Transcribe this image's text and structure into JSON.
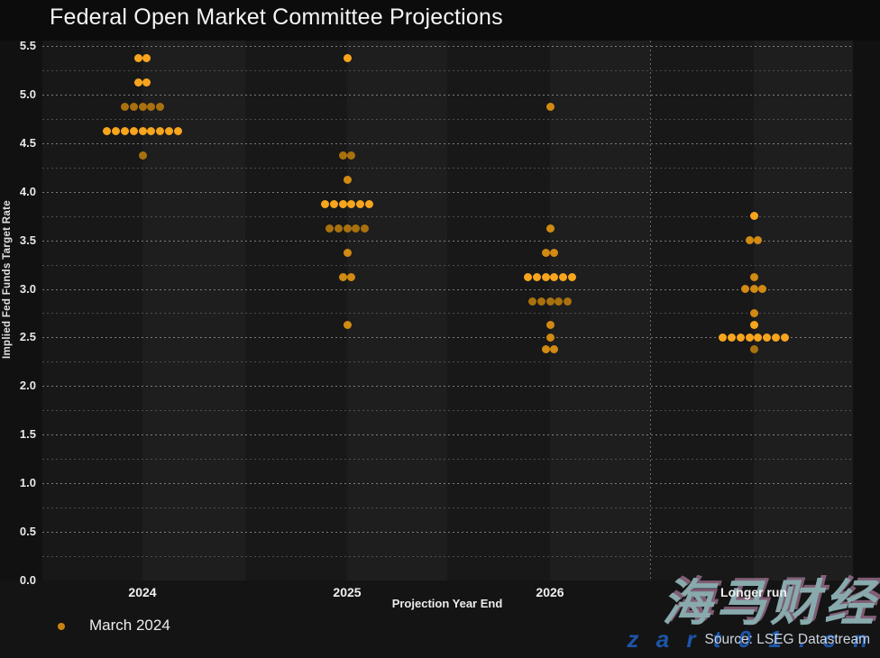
{
  "title": "Federal Open Market Committee Projections",
  "legend": {
    "label": "March 2024",
    "marker_color": "#c8820f"
  },
  "source": "Source: LSEG Datastream",
  "watermark": {
    "main": "海马财经",
    "sub": "z a r t 0 1 . c n"
  },
  "colors": {
    "dot_bright": "#f8a51e",
    "dot_mid": "#d18a12",
    "dot_dim": "#a9710e",
    "plot_bg": "#1c1c1c",
    "page_bg": "#141414",
    "text": "#ededed"
  },
  "chart_data": {
    "type": "scatter",
    "title": "Federal Open Market Committee Projections",
    "xlabel": "Projection Year End",
    "ylabel": "Implied Fed Funds Target Rate",
    "ylim": [
      0,
      5.5
    ],
    "ytick_step": 0.5,
    "grid_step": 0.25,
    "grid": true,
    "legend_position": "bottom-left",
    "categories": [
      "2024",
      "2025",
      "2026",
      "Longer run"
    ],
    "series": [
      {
        "name": "March 2024",
        "points": [
          {
            "category": "2024",
            "rate": 5.375,
            "count": 2,
            "shade": "bright"
          },
          {
            "category": "2024",
            "rate": 5.125,
            "count": 2,
            "shade": "bright"
          },
          {
            "category": "2024",
            "rate": 4.875,
            "count": 5,
            "shade": "dim"
          },
          {
            "category": "2024",
            "rate": 4.625,
            "count": 9,
            "shade": "bright"
          },
          {
            "category": "2024",
            "rate": 4.375,
            "count": 1,
            "shade": "dim"
          },
          {
            "category": "2025",
            "rate": 5.375,
            "count": 1,
            "shade": "bright"
          },
          {
            "category": "2025",
            "rate": 4.375,
            "count": 2,
            "shade": "dim"
          },
          {
            "category": "2025",
            "rate": 4.125,
            "count": 1,
            "shade": "mid"
          },
          {
            "category": "2025",
            "rate": 3.875,
            "count": 6,
            "shade": "bright"
          },
          {
            "category": "2025",
            "rate": 3.625,
            "count": 5,
            "shade": "dim"
          },
          {
            "category": "2025",
            "rate": 3.375,
            "count": 1,
            "shade": "mid"
          },
          {
            "category": "2025",
            "rate": 3.125,
            "count": 2,
            "shade": "mid"
          },
          {
            "category": "2025",
            "rate": 2.625,
            "count": 1,
            "shade": "mid"
          },
          {
            "category": "2026",
            "rate": 4.875,
            "count": 1,
            "shade": "mid"
          },
          {
            "category": "2026",
            "rate": 3.625,
            "count": 1,
            "shade": "mid"
          },
          {
            "category": "2026",
            "rate": 3.375,
            "count": 2,
            "shade": "mid"
          },
          {
            "category": "2026",
            "rate": 3.125,
            "count": 6,
            "shade": "bright"
          },
          {
            "category": "2026",
            "rate": 2.875,
            "count": 5,
            "shade": "dim"
          },
          {
            "category": "2026",
            "rate": 2.625,
            "count": 1,
            "shade": "mid"
          },
          {
            "category": "2026",
            "rate": 2.5,
            "count": 1,
            "shade": "mid"
          },
          {
            "category": "2026",
            "rate": 2.375,
            "count": 2,
            "shade": "mid"
          },
          {
            "category": "Longer run",
            "rate": 3.75,
            "count": 1,
            "shade": "bright"
          },
          {
            "category": "Longer run",
            "rate": 3.5,
            "count": 2,
            "shade": "mid"
          },
          {
            "category": "Longer run",
            "rate": 3.125,
            "count": 1,
            "shade": "mid"
          },
          {
            "category": "Longer run",
            "rate": 3.0,
            "count": 3,
            "shade": "mid"
          },
          {
            "category": "Longer run",
            "rate": 2.75,
            "count": 1,
            "shade": "mid"
          },
          {
            "category": "Longer run",
            "rate": 2.625,
            "count": 1,
            "shade": "bright"
          },
          {
            "category": "Longer run",
            "rate": 2.5,
            "count": 8,
            "shade": "bright"
          },
          {
            "category": "Longer run",
            "rate": 2.375,
            "count": 1,
            "shade": "dim"
          }
        ]
      }
    ]
  }
}
